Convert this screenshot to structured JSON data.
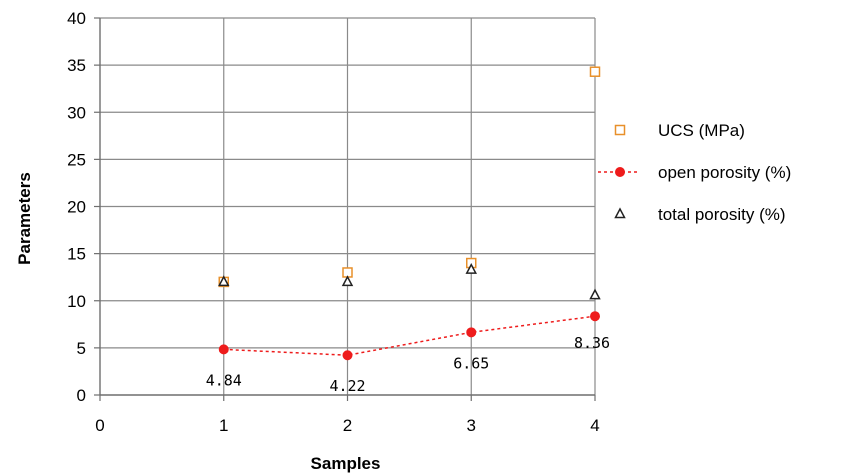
{
  "chart_data": {
    "type": "scatter",
    "title": "",
    "xlabel": "Samples",
    "ylabel": "Parameters",
    "xlim": [
      0,
      4
    ],
    "ylim": [
      0,
      40
    ],
    "xticks": [
      0,
      1,
      2,
      3,
      4
    ],
    "yticks": [
      0,
      5,
      10,
      15,
      20,
      25,
      30,
      35,
      40
    ],
    "grid": true,
    "legend_position": "right",
    "series": [
      {
        "name": "UCS (MPa)",
        "marker": "hollow-square",
        "color": "#e8902a",
        "line": false,
        "x": [
          1,
          2,
          3,
          4
        ],
        "y": [
          12.0,
          13.0,
          14.0,
          34.3
        ]
      },
      {
        "name": "open porosity (%)",
        "marker": "filled-circle",
        "color": "#ee1c1c",
        "line": true,
        "line_style": "dashed",
        "x": [
          1,
          2,
          3,
          4
        ],
        "y": [
          4.84,
          4.22,
          6.65,
          8.36
        ],
        "data_labels": [
          "4.84",
          "4.22",
          "6.65",
          "8.36"
        ]
      },
      {
        "name": "total porosity (%)",
        "marker": "triangle",
        "color": "#222222",
        "line": false,
        "x": [
          1,
          2,
          3,
          4
        ],
        "y": [
          12.0,
          12.0,
          13.3,
          10.6
        ]
      }
    ]
  }
}
